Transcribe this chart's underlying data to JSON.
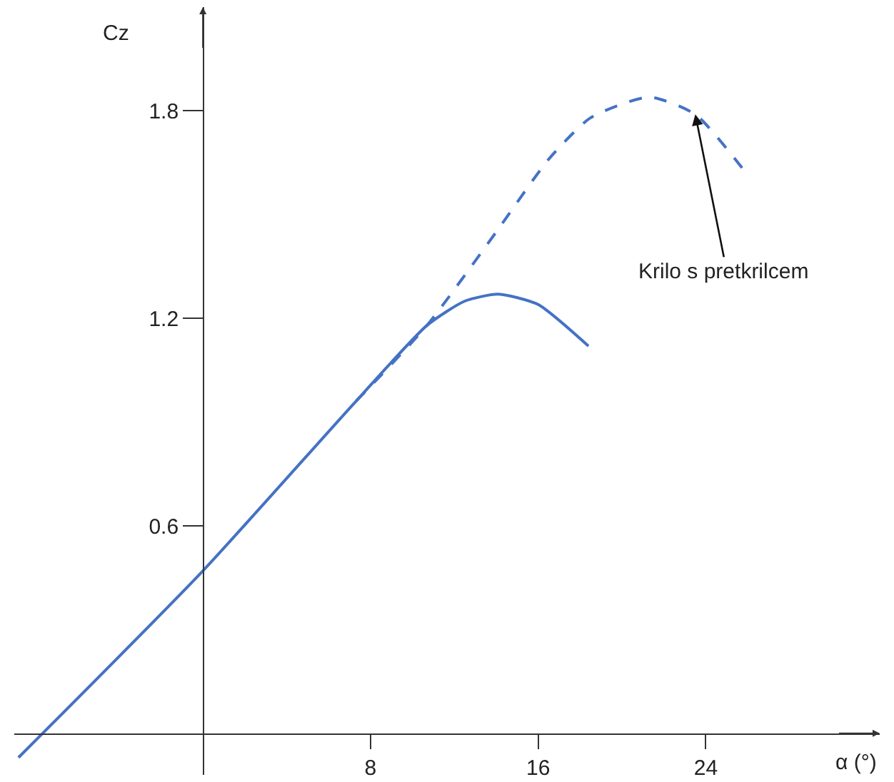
{
  "chart_data": {
    "type": "line",
    "xlabel": "α (°)",
    "ylabel": "Cz",
    "xlim": [
      -9,
      32.3
    ],
    "ylim": [
      -0.12,
      2.1
    ],
    "xticks": [
      8,
      16,
      24
    ],
    "yticks": [
      0.6,
      1.2,
      1.8
    ],
    "grid": false,
    "marker": "none",
    "series": [
      {
        "color": "#4472c4",
        "line_style": "solid",
        "x": [
          -8.8,
          0,
          7.3,
          10.7,
          12.5,
          14.1,
          16,
          18.4
        ],
        "values": [
          -0.07,
          0.47,
          0.96,
          1.18,
          1.25,
          1.27,
          1.24,
          1.12
        ]
      },
      {
        "color": "#4472c4",
        "line_style": "dashed",
        "x": [
          7.3,
          10.7,
          14,
          16.5,
          18.5,
          21.3,
          23.5,
          25.8
        ],
        "values": [
          0.96,
          1.18,
          1.45,
          1.66,
          1.78,
          1.84,
          1.79,
          1.63
        ]
      }
    ],
    "annotations": [
      {
        "text": "Krilo s pretkrilcem",
        "x": 23.5,
        "y": 1.79
      }
    ]
  }
}
